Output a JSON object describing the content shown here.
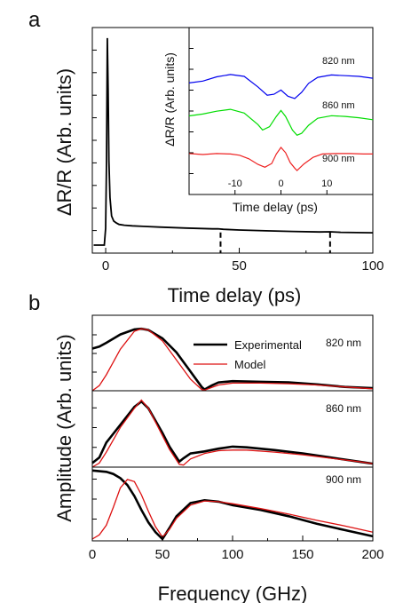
{
  "panels": {
    "a_letter": "a",
    "b_letter": "b"
  },
  "chart_data": [
    {
      "panel": "a",
      "type": "line",
      "xlabel": "Time delay (ps)",
      "ylabel": "ΔR/R (Arb. units)",
      "xlim": [
        -5,
        100
      ],
      "xticks": [
        0,
        50,
        100
      ],
      "xtick_labels": [
        "0",
        "50",
        "100"
      ],
      "series": [
        {
          "color": "#000000",
          "x": [
            -4.5,
            -0.5,
            0,
            0.3,
            0.6,
            0.9,
            1.2,
            1.6,
            2.2,
            3,
            4,
            5,
            7,
            10,
            14,
            20,
            30,
            40,
            42,
            44,
            50,
            60,
            70,
            80,
            84,
            88,
            100
          ],
          "y": [
            0.0,
            0.0,
            0.3,
            1.5,
            3.7,
            2.8,
            1.5,
            0.85,
            0.52,
            0.43,
            0.395,
            0.37,
            0.355,
            0.345,
            0.335,
            0.322,
            0.305,
            0.29,
            0.292,
            0.283,
            0.27,
            0.255,
            0.245,
            0.235,
            0.238,
            0.228,
            0.22
          ]
        }
      ],
      "markers": [
        {
          "x": 43,
          "style": "dashed",
          "color": "#000000"
        },
        {
          "x": 84,
          "style": "dashed",
          "color": "#000000"
        }
      ],
      "inset": {
        "type": "line",
        "xlabel": "Time delay (ps)",
        "ylabel": "ΔR/R (Arb. units)",
        "xlim": [
          -20,
          20
        ],
        "xticks": [
          -10,
          0,
          10
        ],
        "xtick_labels": [
          "-10",
          "0",
          "10"
        ],
        "series": [
          {
            "name": "820 nm",
            "color": "#0000ee",
            "x": [
              -20,
              -17,
              -14,
              -11,
              -8,
              -5,
              -3,
              -1.5,
              0,
              1.5,
              3,
              4.5,
              6,
              8,
              11,
              14,
              17,
              20
            ],
            "y": [
              3.72,
              3.8,
              3.98,
              4.08,
              4.0,
              3.55,
              3.2,
              3.24,
              3.42,
              3.16,
              3.06,
              3.32,
              3.7,
              3.96,
              4.06,
              4.03,
              4.0,
              3.92
            ]
          },
          {
            "name": "860 nm",
            "color": "#00dd00",
            "x": [
              -20,
              -17,
              -14,
              -11,
              -8,
              -5,
              -4,
              -2.5,
              -1,
              0,
              1,
              2.5,
              3.5,
              4.5,
              6,
              8,
              11,
              14,
              17,
              20
            ],
            "y": [
              2.32,
              2.4,
              2.52,
              2.6,
              2.44,
              1.95,
              1.72,
              1.86,
              2.3,
              2.55,
              2.3,
              1.72,
              1.5,
              1.58,
              1.92,
              2.22,
              2.33,
              2.3,
              2.24,
              2.16
            ]
          },
          {
            "name": "900 nm",
            "color": "#ee2222",
            "x": [
              -20,
              -17,
              -14,
              -11,
              -9,
              -7,
              -5,
              -3.5,
              -2,
              -1,
              0,
              1,
              2,
              3,
              3.5,
              5,
              7,
              9,
              12,
              15,
              18,
              20
            ],
            "y": [
              0.72,
              0.68,
              0.72,
              0.7,
              0.65,
              0.5,
              0.26,
              0.14,
              0.3,
              0.7,
              0.98,
              0.76,
              0.34,
              0.1,
              0.0,
              0.28,
              0.56,
              0.7,
              0.72,
              0.72,
              0.7,
              0.7
            ]
          }
        ]
      }
    },
    {
      "panel": "b",
      "type": "line",
      "xlabel": "Frequency (GHz)",
      "ylabel": "Amplitude (Arb. units)",
      "xlim": [
        0,
        200
      ],
      "xticks": [
        0,
        50,
        100,
        150,
        200
      ],
      "xtick_labels": [
        "0",
        "50",
        "100",
        "150",
        "200"
      ],
      "legend": {
        "placement": "top-right",
        "entries": [
          {
            "label": "Experimental",
            "color": "#000000"
          },
          {
            "label": "Model",
            "color": "#dd1111"
          }
        ]
      },
      "subplots": [
        {
          "label": "820 nm",
          "series": [
            {
              "name": "Experimental",
              "color": "#000000",
              "x": [
                0,
                5,
                10,
                20,
                30,
                35,
                40,
                50,
                60,
                70,
                78,
                80,
                85,
                90,
                100,
                120,
                140,
                160,
                180,
                200
              ],
              "y": [
                0.66,
                0.69,
                0.75,
                0.88,
                0.96,
                0.97,
                0.95,
                0.82,
                0.6,
                0.3,
                0.06,
                0.02,
                0.08,
                0.13,
                0.15,
                0.14,
                0.13,
                0.1,
                0.06,
                0.04
              ]
            },
            {
              "name": "Model",
              "color": "#dd1111",
              "x": [
                0,
                5,
                10,
                20,
                30,
                35,
                40,
                50,
                60,
                70,
                78,
                80,
                85,
                90,
                100,
                120,
                140,
                160,
                180,
                200
              ],
              "y": [
                0.0,
                0.08,
                0.25,
                0.65,
                0.93,
                0.97,
                0.95,
                0.78,
                0.48,
                0.18,
                0.02,
                0.01,
                0.05,
                0.09,
                0.12,
                0.12,
                0.11,
                0.09,
                0.06,
                0.03
              ]
            }
          ]
        },
        {
          "label": "860 nm",
          "series": [
            {
              "name": "Experimental",
              "color": "#000000",
              "x": [
                0,
                5,
                10,
                20,
                30,
                35,
                40,
                50,
                55,
                62,
                65,
                70,
                80,
                90,
                100,
                110,
                130,
                150,
                170,
                190,
                200
              ],
              "y": [
                0.06,
                0.14,
                0.36,
                0.62,
                0.88,
                0.96,
                0.86,
                0.5,
                0.3,
                0.08,
                0.13,
                0.2,
                0.23,
                0.27,
                0.3,
                0.29,
                0.25,
                0.2,
                0.14,
                0.08,
                0.05
              ]
            },
            {
              "name": "Model",
              "color": "#dd1111",
              "x": [
                0,
                5,
                10,
                20,
                30,
                35,
                40,
                50,
                55,
                62,
                65,
                70,
                80,
                90,
                100,
                110,
                130,
                150,
                170,
                190,
                200
              ],
              "y": [
                0.0,
                0.06,
                0.22,
                0.58,
                0.86,
                0.98,
                0.86,
                0.46,
                0.26,
                0.04,
                0.03,
                0.12,
                0.2,
                0.24,
                0.25,
                0.25,
                0.22,
                0.18,
                0.13,
                0.08,
                0.05
              ]
            }
          ]
        },
        {
          "label": "900 nm",
          "series": [
            {
              "name": "Experimental",
              "color": "#000000",
              "x": [
                0,
                5,
                10,
                15,
                20,
                25,
                30,
                35,
                40,
                45,
                50,
                55,
                60,
                70,
                80,
                90,
                100,
                120,
                140,
                160,
                180,
                200
              ],
              "y": [
                0.99,
                0.98,
                0.97,
                0.94,
                0.88,
                0.78,
                0.62,
                0.42,
                0.24,
                0.1,
                0.0,
                0.16,
                0.33,
                0.52,
                0.56,
                0.54,
                0.49,
                0.42,
                0.33,
                0.22,
                0.13,
                0.04
              ]
            },
            {
              "name": "Model",
              "color": "#dd1111",
              "x": [
                0,
                5,
                10,
                15,
                20,
                25,
                30,
                35,
                40,
                45,
                50,
                55,
                60,
                70,
                80,
                90,
                100,
                120,
                140,
                160,
                180,
                200
              ],
              "y": [
                0.0,
                0.06,
                0.2,
                0.46,
                0.74,
                0.86,
                0.83,
                0.64,
                0.4,
                0.18,
                0.03,
                0.14,
                0.3,
                0.49,
                0.55,
                0.54,
                0.51,
                0.44,
                0.36,
                0.27,
                0.19,
                0.1
              ]
            }
          ]
        }
      ]
    }
  ]
}
